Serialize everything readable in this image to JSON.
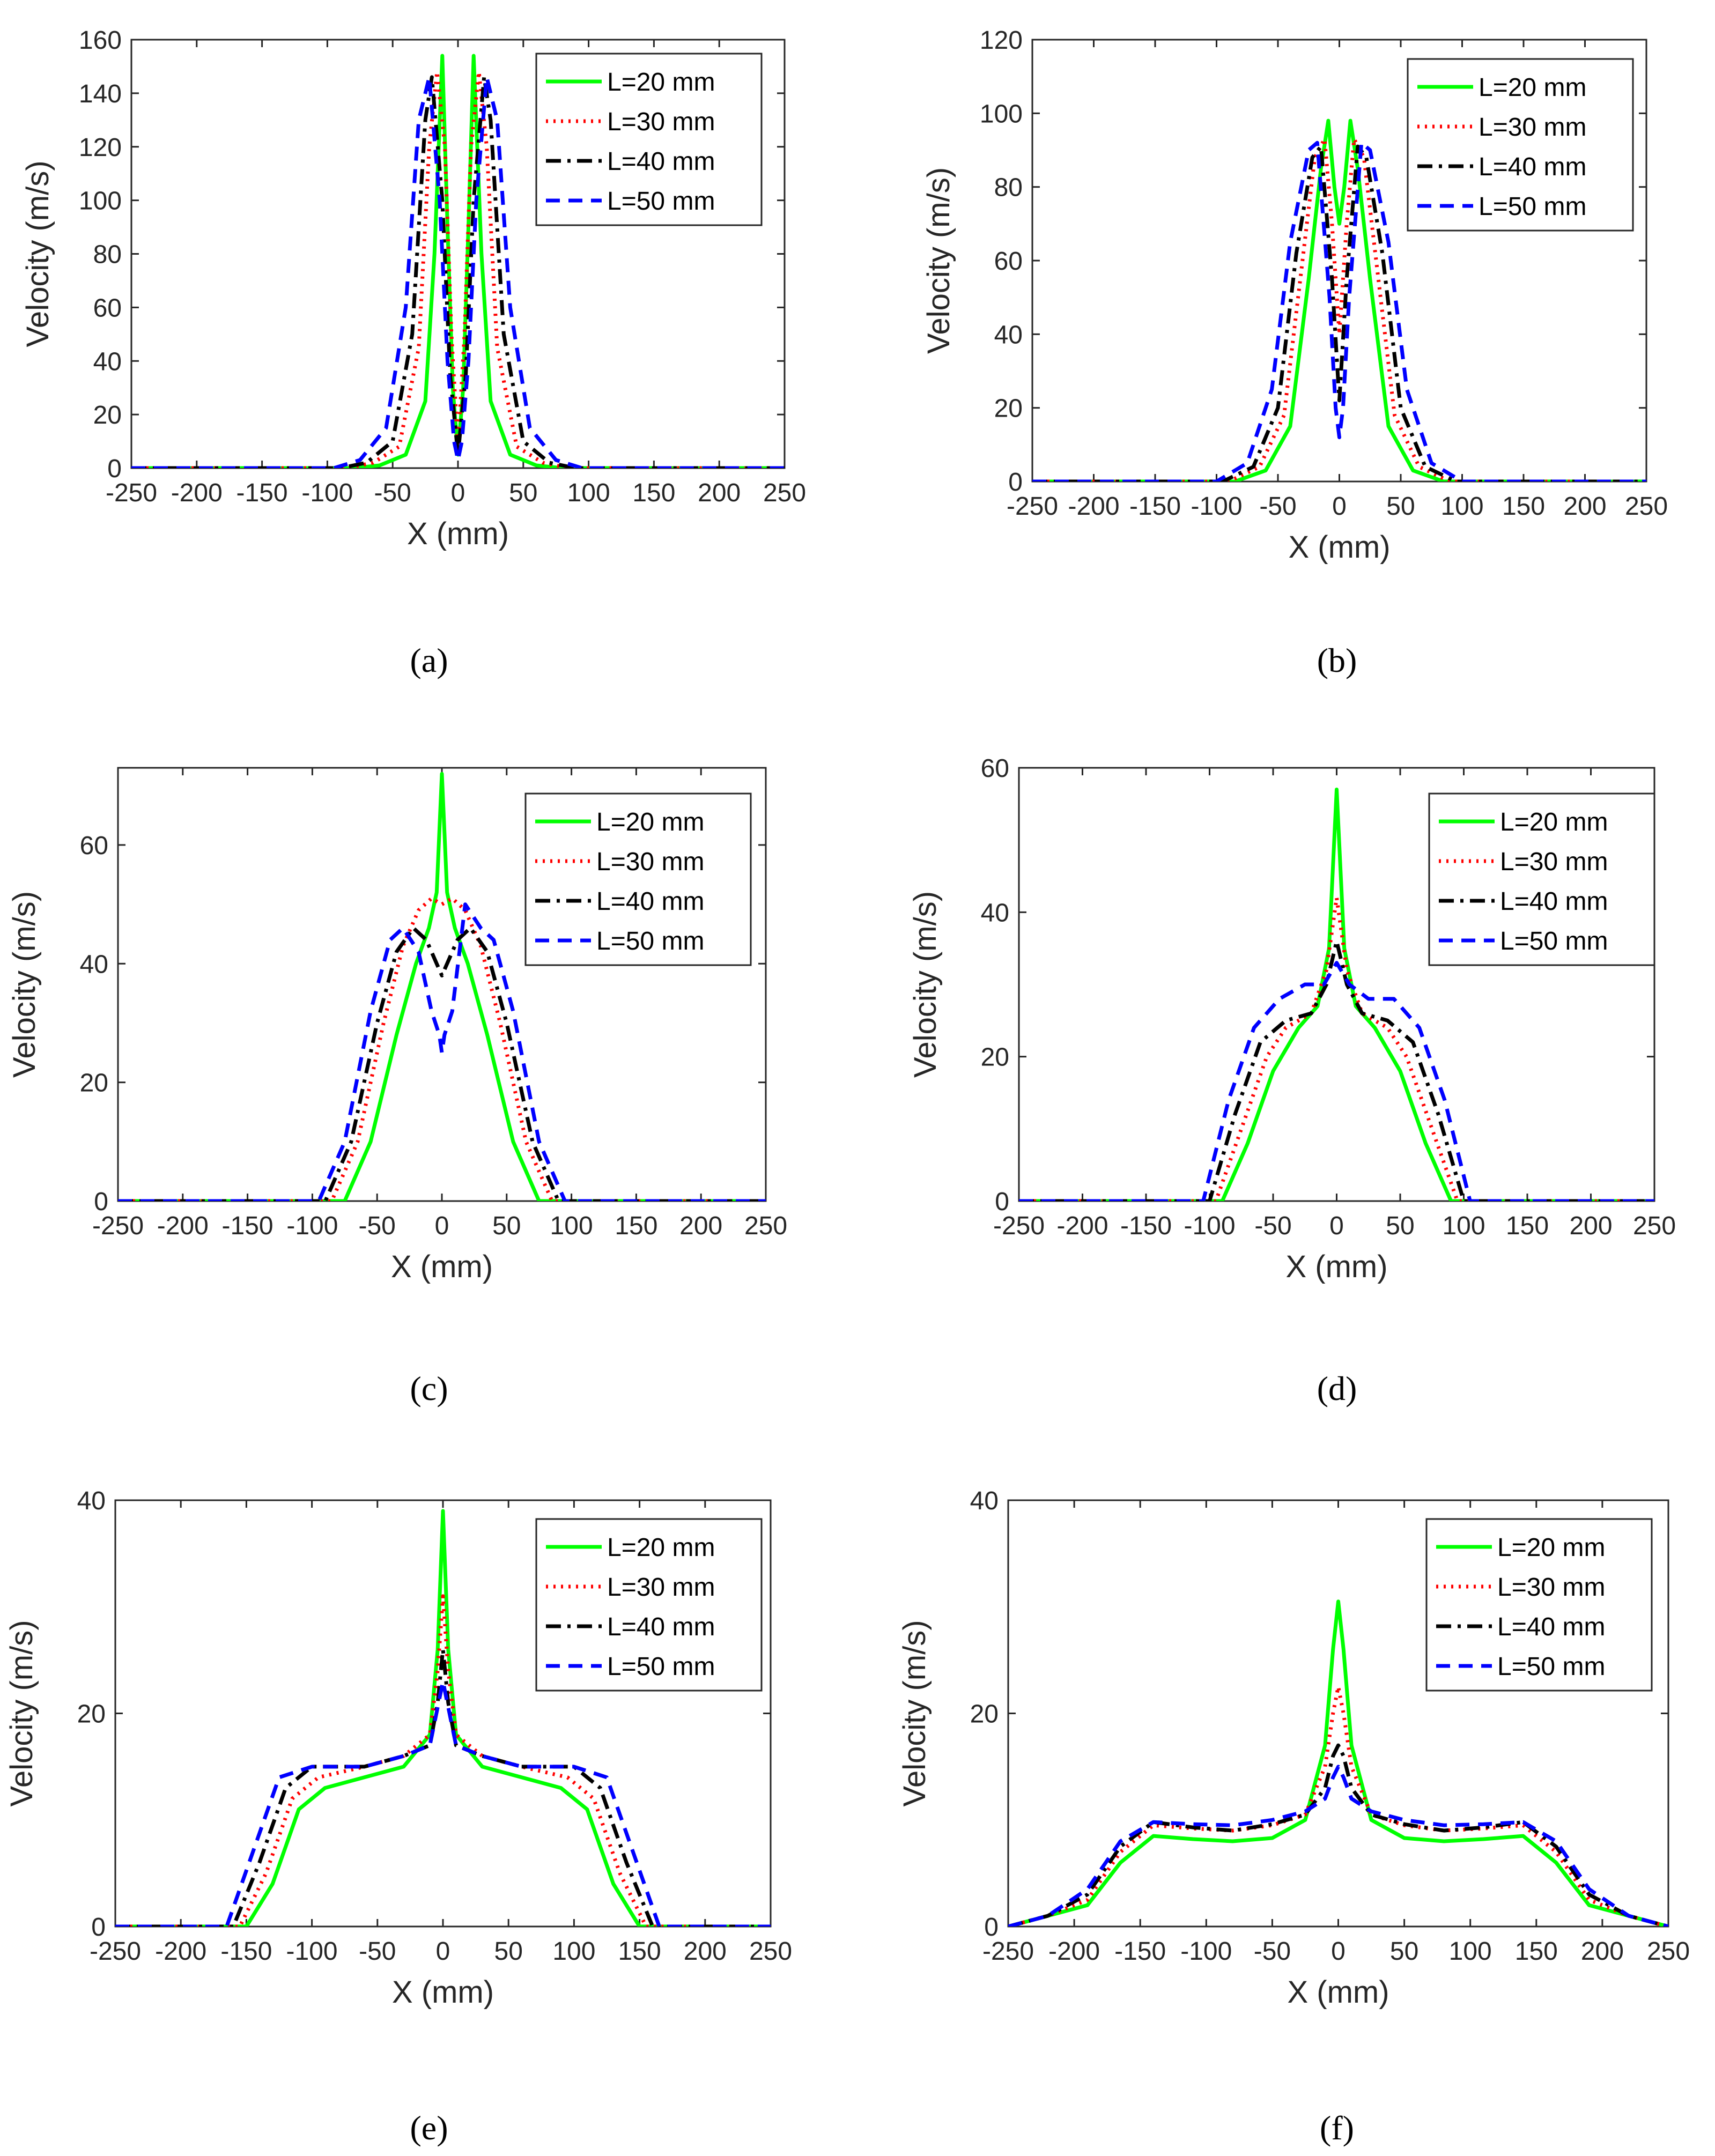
{
  "figure": {
    "legend": [
      {
        "label": "L=20 mm",
        "color": "#00ff00",
        "dash": "solid"
      },
      {
        "label": "L=30 mm",
        "color": "#ff0000",
        "dash": "dotted"
      },
      {
        "label": "L=40 mm",
        "color": "#000000",
        "dash": "dashdot"
      },
      {
        "label": "L=50 mm",
        "color": "#0000ff",
        "dash": "dashed"
      }
    ],
    "xlabel": "X (mm)",
    "ylabel": "Velocity (m/s)",
    "x_ticks": [
      -250,
      -200,
      -150,
      -100,
      -50,
      0,
      50,
      100,
      150,
      200,
      250
    ]
  },
  "chart_data": [
    {
      "type": "line",
      "caption": "(a)",
      "title": "",
      "xlabel": "X (mm)",
      "ylabel": "Velocity (m/s)",
      "xlim": [
        -250,
        250
      ],
      "ylim": [
        0,
        160
      ],
      "y_ticks": [
        0,
        20,
        40,
        60,
        80,
        100,
        120,
        140,
        160
      ],
      "legend_position": "top-right",
      "series": [
        {
          "name": "L=20 mm",
          "x": [
            -250,
            -80,
            -60,
            -40,
            -25,
            -18,
            -12,
            -8,
            -4,
            0,
            4,
            8,
            12,
            18,
            25,
            40,
            60,
            80,
            250
          ],
          "y": [
            0,
            0,
            1,
            5,
            25,
            80,
            154,
            90,
            30,
            5,
            30,
            90,
            154,
            80,
            25,
            5,
            1,
            0,
            0
          ]
        },
        {
          "name": "L=30 mm",
          "x": [
            -250,
            -85,
            -65,
            -45,
            -30,
            -22,
            -16,
            -10,
            -5,
            0,
            5,
            10,
            16,
            22,
            30,
            45,
            65,
            85,
            250
          ],
          "y": [
            0,
            0,
            2,
            8,
            45,
            120,
            148,
            120,
            50,
            8,
            50,
            120,
            148,
            120,
            45,
            8,
            2,
            0,
            0
          ]
        },
        {
          "name": "L=40 mm",
          "x": [
            -250,
            -90,
            -70,
            -50,
            -35,
            -25,
            -20,
            -12,
            -6,
            0,
            6,
            12,
            20,
            25,
            35,
            50,
            70,
            90,
            250
          ],
          "y": [
            0,
            0,
            2,
            10,
            50,
            130,
            146,
            100,
            35,
            5,
            35,
            100,
            146,
            130,
            50,
            10,
            2,
            0,
            0
          ]
        },
        {
          "name": "L=50 mm",
          "x": [
            -250,
            -95,
            -75,
            -55,
            -40,
            -30,
            -22,
            -14,
            -8,
            -3,
            0,
            3,
            8,
            14,
            22,
            30,
            40,
            55,
            75,
            95,
            250
          ],
          "y": [
            0,
            0,
            3,
            15,
            60,
            130,
            146,
            100,
            40,
            10,
            3,
            10,
            40,
            100,
            146,
            130,
            60,
            15,
            3,
            0,
            0
          ]
        }
      ]
    },
    {
      "type": "line",
      "caption": "(b)",
      "title": "",
      "xlabel": "X (mm)",
      "ylabel": "Velocity (m/s)",
      "xlim": [
        -250,
        250
      ],
      "ylim": [
        0,
        120
      ],
      "y_ticks": [
        0,
        20,
        40,
        60,
        80,
        100,
        120
      ],
      "legend_position": "top-right",
      "series": [
        {
          "name": "L=20 mm",
          "x": [
            -250,
            -85,
            -60,
            -40,
            -25,
            -15,
            -9,
            -4,
            0,
            4,
            9,
            15,
            25,
            40,
            60,
            85,
            250
          ],
          "y": [
            0,
            0,
            3,
            15,
            55,
            85,
            98,
            80,
            70,
            80,
            98,
            85,
            55,
            15,
            3,
            0,
            0
          ]
        },
        {
          "name": "L=30 mm",
          "x": [
            -250,
            -90,
            -65,
            -45,
            -30,
            -20,
            -12,
            -6,
            0,
            6,
            12,
            20,
            30,
            45,
            65,
            90,
            250
          ],
          "y": [
            0,
            0,
            4,
            18,
            60,
            88,
            93,
            70,
            40,
            70,
            93,
            88,
            60,
            18,
            4,
            0,
            0
          ]
        },
        {
          "name": "L=40 mm",
          "x": [
            -250,
            -95,
            -70,
            -50,
            -35,
            -22,
            -15,
            -6,
            0,
            6,
            15,
            22,
            35,
            50,
            70,
            95,
            250
          ],
          "y": [
            0,
            0,
            4,
            20,
            62,
            88,
            91,
            55,
            22,
            55,
            91,
            88,
            62,
            20,
            4,
            0,
            0
          ]
        },
        {
          "name": "L=50 mm",
          "x": [
            -250,
            -100,
            -75,
            -55,
            -40,
            -25,
            -18,
            -8,
            -3,
            0,
            3,
            8,
            18,
            25,
            40,
            55,
            75,
            100,
            250
          ],
          "y": [
            0,
            0,
            5,
            25,
            65,
            90,
            92,
            50,
            20,
            12,
            20,
            50,
            92,
            90,
            65,
            25,
            5,
            0,
            0
          ]
        }
      ]
    },
    {
      "type": "line",
      "caption": "(c)",
      "title": "",
      "xlabel": "X (mm)",
      "ylabel": "Velocity (m/s)",
      "xlim": [
        -250,
        250
      ],
      "ylim": [
        0,
        73
      ],
      "y_ticks": [
        0,
        20,
        40,
        60
      ],
      "legend_position": "top-right",
      "series": [
        {
          "name": "L=20 mm",
          "x": [
            -250,
            -75,
            -55,
            -35,
            -20,
            -10,
            -4,
            0,
            4,
            10,
            20,
            35,
            55,
            75,
            250
          ],
          "y": [
            0,
            0,
            10,
            28,
            40,
            46,
            52,
            72,
            52,
            46,
            40,
            28,
            10,
            0,
            0
          ]
        },
        {
          "name": "L=30 mm",
          "x": [
            -250,
            -85,
            -65,
            -45,
            -30,
            -18,
            -8,
            0,
            8,
            18,
            30,
            45,
            65,
            85,
            250
          ],
          "y": [
            0,
            0,
            10,
            30,
            43,
            49,
            51,
            50,
            51,
            49,
            43,
            30,
            10,
            0,
            0
          ]
        },
        {
          "name": "L=40 mm",
          "x": [
            -250,
            -90,
            -70,
            -50,
            -35,
            -22,
            -12,
            -4,
            0,
            4,
            12,
            22,
            35,
            50,
            70,
            90,
            250
          ],
          "y": [
            0,
            0,
            10,
            30,
            42,
            46,
            44,
            40,
            38,
            40,
            44,
            46,
            42,
            30,
            10,
            0,
            0
          ]
        },
        {
          "name": "L=50 mm",
          "x": [
            -250,
            -95,
            -75,
            -55,
            -40,
            -30,
            -18,
            -8,
            -2,
            0,
            2,
            8,
            18,
            30,
            40,
            55,
            75,
            95,
            250
          ],
          "y": [
            0,
            0,
            10,
            32,
            44,
            46,
            42,
            32,
            28,
            25,
            28,
            32,
            50,
            46,
            44,
            32,
            10,
            0,
            0
          ]
        }
      ]
    },
    {
      "type": "line",
      "caption": "(d)",
      "title": "",
      "xlabel": "X (mm)",
      "ylabel": "Velocity (m/s)",
      "xlim": [
        -250,
        250
      ],
      "ylim": [
        0,
        60
      ],
      "y_ticks": [
        0,
        20,
        40,
        60
      ],
      "legend_position": "top-right",
      "series": [
        {
          "name": "L=20 mm",
          "x": [
            -250,
            -90,
            -70,
            -50,
            -30,
            -15,
            -6,
            0,
            6,
            15,
            30,
            50,
            70,
            90,
            250
          ],
          "y": [
            0,
            0,
            8,
            18,
            24,
            27,
            35,
            57,
            35,
            27,
            24,
            18,
            8,
            0,
            0
          ]
        },
        {
          "name": "L=30 mm",
          "x": [
            -250,
            -95,
            -75,
            -55,
            -40,
            -20,
            -8,
            0,
            8,
            20,
            40,
            55,
            75,
            95,
            250
          ],
          "y": [
            0,
            0,
            10,
            20,
            24,
            26,
            32,
            42,
            32,
            26,
            24,
            20,
            10,
            0,
            0
          ]
        },
        {
          "name": "L=40 mm",
          "x": [
            -250,
            -100,
            -80,
            -60,
            -40,
            -20,
            -8,
            0,
            8,
            20,
            40,
            60,
            80,
            100,
            250
          ],
          "y": [
            0,
            0,
            12,
            22,
            25,
            26,
            30,
            36,
            30,
            26,
            25,
            22,
            12,
            0,
            0
          ]
        },
        {
          "name": "L=50 mm",
          "x": [
            -250,
            -105,
            -85,
            -65,
            -45,
            -25,
            -10,
            0,
            10,
            25,
            45,
            65,
            85,
            105,
            250
          ],
          "y": [
            0,
            0,
            14,
            24,
            28,
            30,
            30,
            33,
            30,
            28,
            28,
            24,
            14,
            0,
            0
          ]
        }
      ]
    },
    {
      "type": "line",
      "caption": "(e)",
      "title": "",
      "xlabel": "X (mm)",
      "ylabel": "Velocity (m/s)",
      "xlim": [
        -250,
        250
      ],
      "ylim": [
        0,
        40
      ],
      "y_ticks": [
        0,
        20,
        40
      ],
      "legend_position": "top-right",
      "series": [
        {
          "name": "L=20 mm",
          "x": [
            -250,
            -150,
            -130,
            -110,
            -90,
            -60,
            -30,
            -10,
            -4,
            0,
            4,
            10,
            30,
            60,
            90,
            110,
            130,
            150,
            250
          ],
          "y": [
            0,
            0,
            4,
            11,
            13,
            14,
            15,
            18,
            26,
            39,
            26,
            18,
            15,
            14,
            13,
            11,
            4,
            0,
            0
          ]
        },
        {
          "name": "L=30 mm",
          "x": [
            -250,
            -155,
            -135,
            -115,
            -95,
            -60,
            -30,
            -10,
            -4,
            0,
            4,
            10,
            30,
            60,
            95,
            115,
            135,
            155,
            250
          ],
          "y": [
            0,
            0,
            5,
            12,
            14,
            15,
            16,
            18,
            24,
            31,
            24,
            18,
            16,
            15,
            14,
            12,
            5,
            0,
            0
          ]
        },
        {
          "name": "L=40 mm",
          "x": [
            -250,
            -160,
            -140,
            -120,
            -100,
            -60,
            -30,
            -10,
            -4,
            0,
            4,
            10,
            30,
            60,
            100,
            120,
            140,
            160,
            250
          ],
          "y": [
            0,
            0,
            6,
            13,
            15,
            15,
            16,
            17,
            21,
            26,
            21,
            17,
            16,
            15,
            15,
            13,
            6,
            0,
            0
          ]
        },
        {
          "name": "L=50 mm",
          "x": [
            -250,
            -165,
            -145,
            -125,
            -100,
            -60,
            -30,
            -10,
            0,
            10,
            30,
            60,
            100,
            125,
            145,
            165,
            250
          ],
          "y": [
            0,
            0,
            7,
            14,
            15,
            15,
            16,
            17,
            23,
            17,
            16,
            15,
            15,
            14,
            7,
            0,
            0
          ]
        }
      ]
    },
    {
      "type": "line",
      "caption": "(f)",
      "title": "",
      "xlabel": "X (mm)",
      "ylabel": "Velocity (m/s)",
      "xlim": [
        -250,
        250
      ],
      "ylim": [
        0,
        40
      ],
      "y_ticks": [
        0,
        20,
        40
      ],
      "legend_position": "top-right",
      "series": [
        {
          "name": "L=20 mm",
          "x": [
            -250,
            -220,
            -190,
            -165,
            -140,
            -110,
            -80,
            -50,
            -25,
            -10,
            -4,
            0,
            4,
            10,
            25,
            50,
            80,
            110,
            140,
            165,
            190,
            220,
            250
          ],
          "y": [
            0,
            1,
            2,
            6,
            8.5,
            8.2,
            8,
            8.3,
            10,
            17,
            26,
            30.5,
            26,
            17,
            10,
            8.3,
            8,
            8.2,
            8.5,
            6,
            2,
            1,
            0
          ]
        },
        {
          "name": "L=30 mm",
          "x": [
            -250,
            -220,
            -190,
            -165,
            -140,
            -110,
            -80,
            -50,
            -25,
            -10,
            -4,
            0,
            4,
            10,
            25,
            50,
            80,
            110,
            140,
            165,
            190,
            220,
            250
          ],
          "y": [
            0,
            1,
            2.5,
            7,
            9.5,
            9.2,
            9,
            9.5,
            10.5,
            15,
            20,
            22.5,
            20,
            15,
            10.5,
            9.5,
            9,
            9.2,
            9.5,
            7,
            2.5,
            1,
            0
          ]
        },
        {
          "name": "L=40 mm",
          "x": [
            -250,
            -220,
            -190,
            -165,
            -140,
            -110,
            -80,
            -50,
            -25,
            -10,
            -4,
            0,
            4,
            10,
            25,
            50,
            80,
            110,
            140,
            165,
            190,
            220,
            250
          ],
          "y": [
            0,
            1,
            3,
            7.5,
            9.8,
            9.3,
            9,
            9.6,
            10.5,
            13,
            16,
            17,
            16,
            13,
            10.5,
            9.6,
            9,
            9.3,
            9.8,
            7.5,
            3,
            1,
            0
          ]
        },
        {
          "name": "L=50 mm",
          "x": [
            -250,
            -220,
            -190,
            -165,
            -140,
            -110,
            -80,
            -50,
            -25,
            -10,
            -4,
            0,
            4,
            10,
            25,
            50,
            80,
            110,
            140,
            165,
            190,
            220,
            250
          ],
          "y": [
            0,
            1,
            3.5,
            8,
            9.8,
            9.6,
            9.5,
            10,
            10.8,
            12,
            14,
            15,
            14,
            12,
            10.8,
            10,
            9.5,
            9.6,
            9.8,
            8,
            3.5,
            1,
            0
          ]
        }
      ]
    }
  ]
}
